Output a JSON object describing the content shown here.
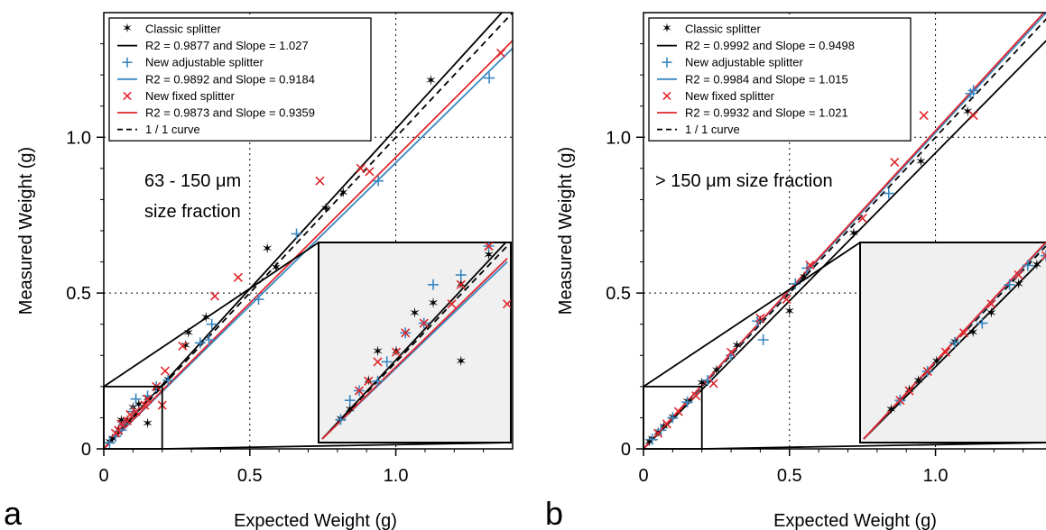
{
  "chart_data": [
    {
      "type": "scatter",
      "panel_label": "a",
      "xlabel": "Expected Weight (g)",
      "ylabel": "Measured Weight (g)",
      "xlim": [
        0,
        1.4
      ],
      "ylim": [
        0,
        1.4
      ],
      "xticks": [
        "0",
        "0.5",
        "1.0"
      ],
      "yticks": [
        "0",
        "0.5",
        "1.0"
      ],
      "annotation": [
        "63 - 150 μm",
        "size fraction"
      ],
      "grid": "dotted at 0.5 and 1.0",
      "legend_position": "top-left",
      "legend": [
        {
          "label": "Classic splitter",
          "kind": "marker",
          "marker": "star",
          "color": "#000000"
        },
        {
          "label": "R2 = 0.9877 and Slope = 1.027",
          "kind": "line",
          "color": "#000000"
        },
        {
          "label": "New adjustable splitter",
          "kind": "marker",
          "marker": "plus",
          "color": "#3a87c0"
        },
        {
          "label": "R2 = 0.9892 and Slope = 0.9184",
          "kind": "line",
          "color": "#3a87c0"
        },
        {
          "label": "New fixed splitter",
          "kind": "marker",
          "marker": "x",
          "color": "#e0262b"
        },
        {
          "label": "R2 = 0.9873 and Slope = 0.9359",
          "kind": "line",
          "color": "#e0262b"
        },
        {
          "label": "1 / 1 curve",
          "kind": "dashed",
          "color": "#000000"
        }
      ],
      "fits": [
        {
          "slope": 1.027,
          "color": "#000000"
        },
        {
          "slope": 0.9184,
          "color": "#3a87c0"
        },
        {
          "slope": 0.9359,
          "color": "#e0262b"
        }
      ],
      "series": [
        {
          "marker": "star",
          "color": "#000000",
          "x": [
            1.12,
            0.82,
            0.76,
            0.56,
            0.59,
            0.35,
            0.29,
            0.28,
            0.22,
            0.18,
            0.15,
            0.15,
            0.1,
            0.06,
            0.05,
            0.03,
            0.02,
            0.08,
            0.12
          ],
          "y": [
            1.18,
            0.82,
            0.77,
            0.64,
            0.58,
            0.42,
            0.37,
            0.33,
            0.22,
            0.19,
            0.16,
            0.08,
            0.13,
            0.09,
            0.06,
            0.03,
            0.02,
            0.09,
            0.14
          ]
        },
        {
          "marker": "plus",
          "color": "#3a87c0",
          "x": [
            1.32,
            0.94,
            0.66,
            0.53,
            0.37,
            0.36,
            0.33,
            0.22,
            0.18,
            0.15,
            0.11,
            0.1,
            0.07,
            0.06,
            0.04,
            0.02
          ],
          "y": [
            1.19,
            0.86,
            0.69,
            0.48,
            0.4,
            0.35,
            0.34,
            0.22,
            0.2,
            0.17,
            0.16,
            0.12,
            0.08,
            0.06,
            0.04,
            0.02
          ],
          "inset_x": [
            0.18,
            0.17,
            0.15,
            0.12,
            0.11,
            0.09,
            0.07,
            0.06,
            0.04,
            0.03,
            0.02
          ],
          "inset_y": [
            0.2,
            0.22,
            0.17,
            0.16,
            0.12,
            0.11,
            0.08,
            0.06,
            0.05,
            0.04,
            0.02
          ]
        },
        {
          "marker": "x",
          "color": "#e0262b",
          "x": [
            1.36,
            0.88,
            0.91,
            0.74,
            0.46,
            0.38,
            0.27,
            0.21,
            0.2,
            0.18,
            0.15,
            0.14,
            0.11,
            0.09,
            0.08,
            0.06,
            0.05,
            0.04
          ],
          "y": [
            1.27,
            0.9,
            0.89,
            0.86,
            0.55,
            0.49,
            0.33,
            0.25,
            0.14,
            0.2,
            0.16,
            0.14,
            0.12,
            0.11,
            0.09,
            0.08,
            0.06,
            0.05
          ]
        }
      ]
    },
    {
      "type": "scatter",
      "panel_label": "b",
      "xlabel": "Expected Weight (g)",
      "ylabel": "Measured Weight (g)",
      "xlim": [
        0,
        1.4
      ],
      "ylim": [
        0,
        1.4
      ],
      "xticks": [
        "0",
        "0.5",
        "1.0"
      ],
      "yticks": [
        "0",
        "0.5",
        "1.0"
      ],
      "annotation": [
        "> 150 μm size fraction"
      ],
      "grid": "dotted at 0.5 and 1.0",
      "legend_position": "top-left",
      "legend": [
        {
          "label": "Classic splitter",
          "kind": "marker",
          "marker": "star",
          "color": "#000000"
        },
        {
          "label": "R2 = 0.9992 and Slope = 0.9498",
          "kind": "line",
          "color": "#000000"
        },
        {
          "label": "New adjustable splitter",
          "kind": "marker",
          "marker": "plus",
          "color": "#3a87c0"
        },
        {
          "label": "R2 = 0.9984 and Slope = 1.015",
          "kind": "line",
          "color": "#3a87c0"
        },
        {
          "label": "New fixed splitter",
          "kind": "marker",
          "marker": "x",
          "color": "#e0262b"
        },
        {
          "label": "R2 = 0.9932 and Slope = 1.021",
          "kind": "line",
          "color": "#e0262b"
        },
        {
          "label": "1 / 1 curve",
          "kind": "dashed",
          "color": "#000000"
        }
      ],
      "fits": [
        {
          "slope": 0.9498,
          "color": "#000000"
        },
        {
          "slope": 1.015,
          "color": "#3a87c0"
        },
        {
          "slope": 1.021,
          "color": "#e0262b"
        }
      ],
      "series": [
        {
          "marker": "star",
          "color": "#000000",
          "x": [
            1.11,
            0.95,
            0.72,
            0.55,
            0.5,
            0.4,
            0.32,
            0.25,
            0.2,
            0.15,
            0.1,
            0.07,
            0.05,
            0.03,
            0.02
          ],
          "y": [
            1.08,
            0.92,
            0.69,
            0.55,
            0.44,
            0.41,
            0.33,
            0.25,
            0.21,
            0.15,
            0.1,
            0.07,
            0.05,
            0.03,
            0.02
          ],
          "inset_x": [
            0.19,
            0.17,
            0.14,
            0.12,
            0.1,
            0.08,
            0.06,
            0.05,
            0.04,
            0.03
          ],
          "inset_y": [
            0.18,
            0.16,
            0.13,
            0.11,
            0.1,
            0.08,
            0.06,
            0.05,
            0.04,
            0.03
          ]
        },
        {
          "marker": "plus",
          "color": "#3a87c0",
          "x": [
            1.13,
            1.12,
            0.84,
            0.56,
            0.52,
            0.41,
            0.39,
            0.3,
            0.22,
            0.15,
            0.1,
            0.06,
            0.03
          ],
          "y": [
            1.15,
            1.14,
            0.82,
            0.58,
            0.53,
            0.35,
            0.41,
            0.3,
            0.22,
            0.15,
            0.1,
            0.06,
            0.03
          ],
          "inset_x": [
            0.2,
            0.18,
            0.16,
            0.13,
            0.1,
            0.07,
            0.04
          ],
          "inset_y": [
            0.19,
            0.18,
            0.16,
            0.12,
            0.1,
            0.07,
            0.04
          ]
        },
        {
          "marker": "x",
          "color": "#e0262b",
          "x": [
            1.13,
            0.96,
            0.86,
            0.75,
            0.57,
            0.49,
            0.4,
            0.3,
            0.24,
            0.18,
            0.12,
            0.08,
            0.05
          ],
          "y": [
            1.07,
            1.07,
            0.92,
            0.74,
            0.59,
            0.48,
            0.42,
            0.31,
            0.21,
            0.17,
            0.12,
            0.08,
            0.05
          ],
          "inset_x": [
            0.2,
            0.17,
            0.14,
            0.11,
            0.09,
            0.07,
            0.05,
            0.04
          ],
          "inset_y": [
            0.19,
            0.17,
            0.14,
            0.11,
            0.09,
            0.07,
            0.05,
            0.04
          ]
        }
      ]
    }
  ]
}
